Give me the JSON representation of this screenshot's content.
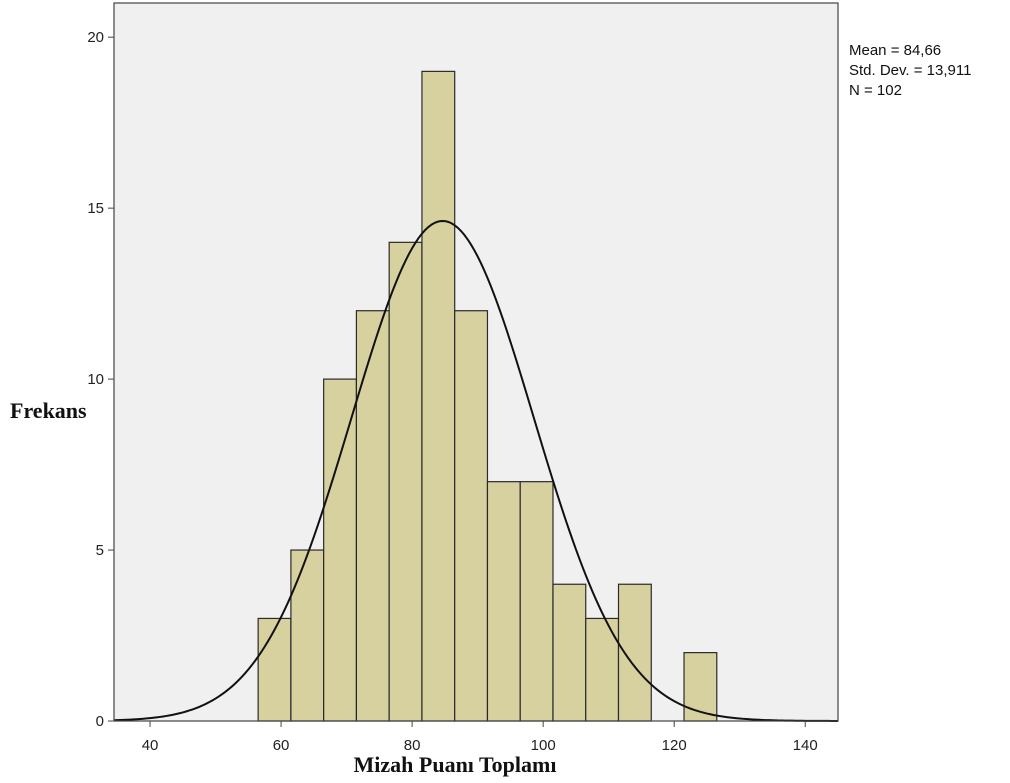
{
  "chart_data": {
    "type": "bar",
    "xlabel": "Mizah Puanı Toplamı",
    "ylabel": "Frekans",
    "xlim": [
      34.5,
      145
    ],
    "ylim": [
      0,
      21
    ],
    "x_ticks": [
      40,
      60,
      80,
      100,
      120,
      140
    ],
    "y_ticks": [
      0,
      5,
      10,
      15,
      20
    ],
    "bin_width": 5,
    "bins": [
      {
        "start": 56.5,
        "end": 61.5,
        "count": 3
      },
      {
        "start": 61.5,
        "end": 66.5,
        "count": 5
      },
      {
        "start": 66.5,
        "end": 71.5,
        "count": 10
      },
      {
        "start": 71.5,
        "end": 76.5,
        "count": 12
      },
      {
        "start": 76.5,
        "end": 81.5,
        "count": 14
      },
      {
        "start": 81.5,
        "end": 86.5,
        "count": 19
      },
      {
        "start": 86.5,
        "end": 91.5,
        "count": 12
      },
      {
        "start": 91.5,
        "end": 96.5,
        "count": 7
      },
      {
        "start": 96.5,
        "end": 101.5,
        "count": 7
      },
      {
        "start": 101.5,
        "end": 106.5,
        "count": 4
      },
      {
        "start": 106.5,
        "end": 111.5,
        "count": 3
      },
      {
        "start": 111.5,
        "end": 116.5,
        "count": 4
      },
      {
        "start": 116.5,
        "end": 121.5,
        "count": 0
      },
      {
        "start": 121.5,
        "end": 126.5,
        "count": 2
      }
    ],
    "normal_curve": {
      "mean": 84.66,
      "std_dev": 13.911,
      "n": 102
    },
    "stats_text": [
      "Mean = 84,66",
      "Std. Dev. = 13,911",
      "N = 102"
    ],
    "grid": false,
    "colors": {
      "bar_fill": "#d7d1a0",
      "bar_stroke": "#2a2a2a",
      "plot_bg": "#f0f0f0",
      "curve": "#111111"
    }
  }
}
